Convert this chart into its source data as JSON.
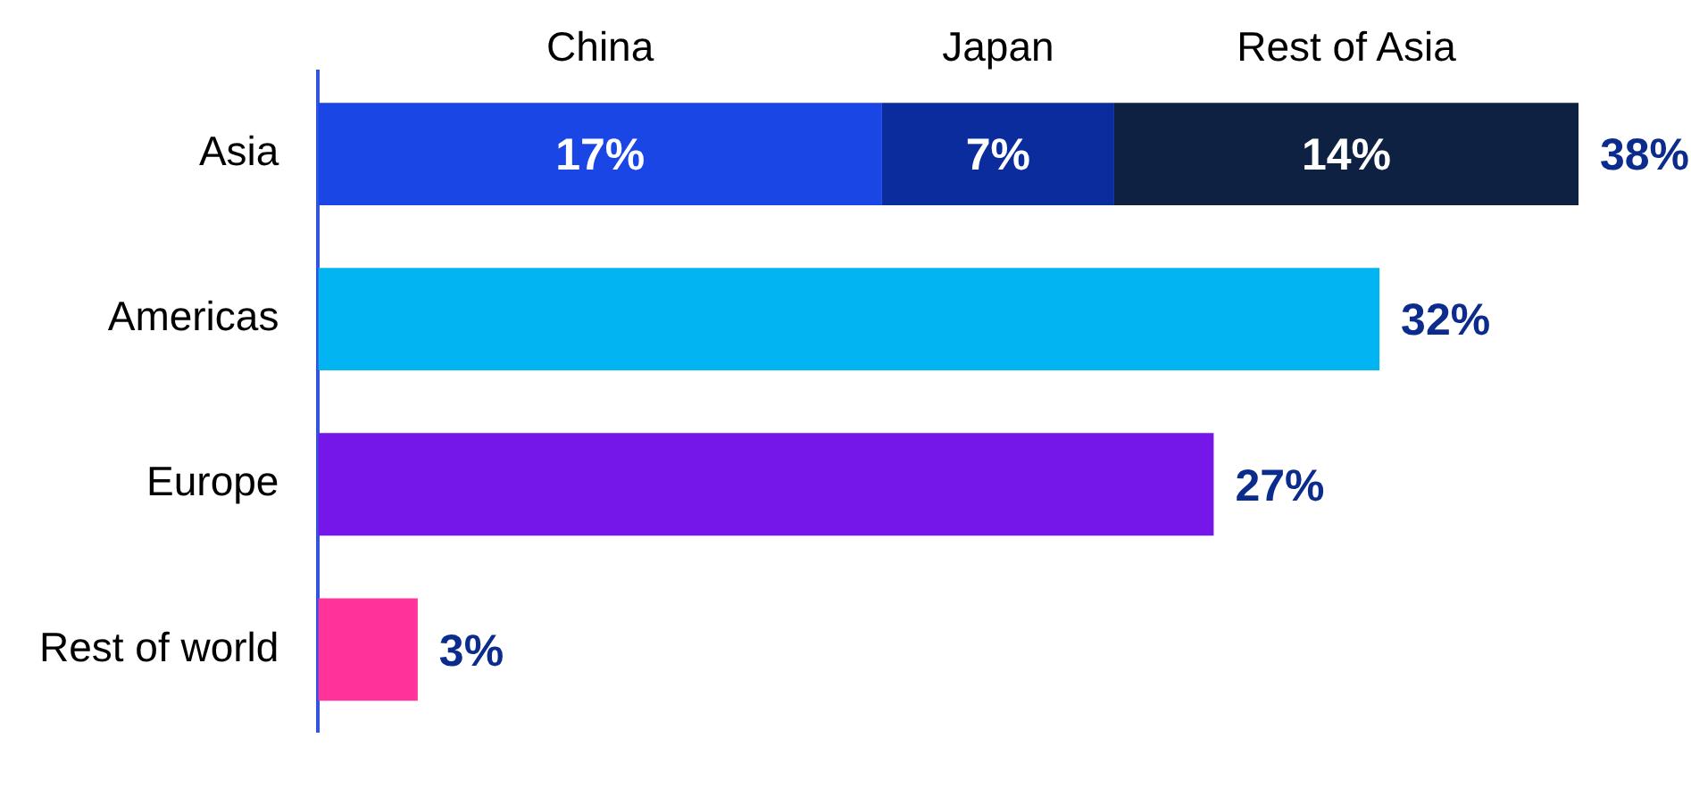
{
  "chart_data": {
    "type": "bar",
    "orientation": "horizontal",
    "stacked": true,
    "categories": [
      "Asia",
      "Americas",
      "Europe",
      "Rest of world"
    ],
    "series": [
      {
        "name": "China",
        "color": "#1a46e6",
        "values": [
          17,
          null,
          null,
          null
        ],
        "value_labels": [
          "17%",
          null,
          null,
          null
        ]
      },
      {
        "name": "Japan",
        "color": "#0b2c9c",
        "values": [
          7,
          null,
          null,
          null
        ],
        "value_labels": [
          "7%",
          null,
          null,
          null
        ]
      },
      {
        "name": "Rest of Asia",
        "color": "#0e2142",
        "values": [
          14,
          null,
          null,
          null
        ],
        "value_labels": [
          "14%",
          null,
          null,
          null
        ]
      },
      {
        "colors": [
          null,
          "#00b5f1",
          "#7517e8",
          "#ff3399"
        ],
        "values": [
          null,
          32,
          27,
          3
        ]
      }
    ],
    "totals": [
      "38%",
      "32%",
      "27%",
      "3%"
    ],
    "xlim": [
      0,
      38
    ],
    "tick_labels": "y",
    "legend": false
  }
}
